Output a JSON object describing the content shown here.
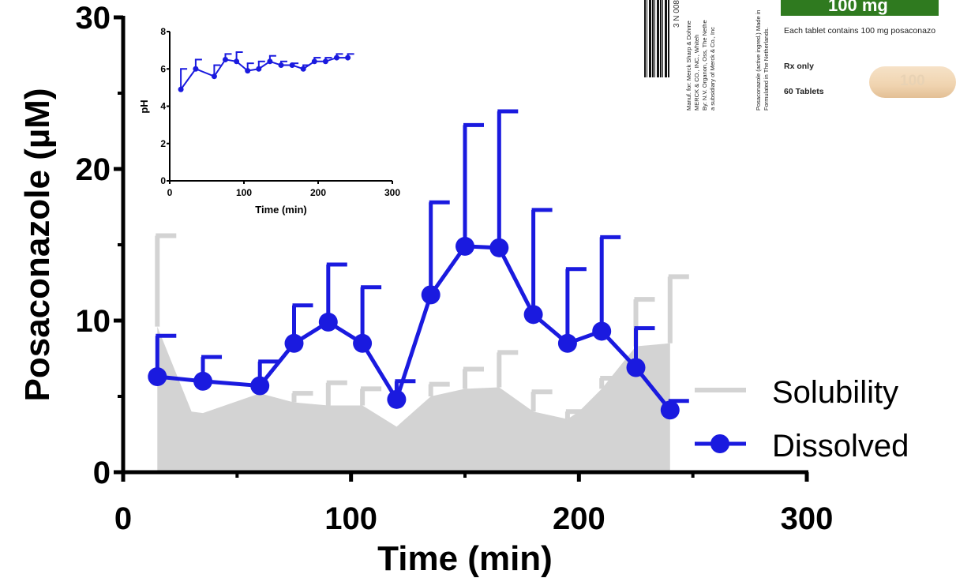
{
  "chart_data": [
    {
      "type": "line",
      "xlabel": "Time (min)",
      "ylabel": "Posaconazole (µM)",
      "xlim": [
        0,
        300
      ],
      "ylim": [
        0,
        30
      ],
      "xticks": [
        "0",
        "100",
        "200",
        "300"
      ],
      "yticks": [
        "0",
        "10",
        "20",
        "30"
      ],
      "legend_position": "bottom-right",
      "series": [
        {
          "name": "Solubility",
          "style": "area",
          "color": "#d3d3d3",
          "x": [
            15,
            30,
            35,
            60,
            75,
            90,
            105,
            120,
            135,
            150,
            165,
            180,
            195,
            200,
            210,
            225,
            240
          ],
          "values": [
            9.6,
            4.0,
            3.9,
            5.2,
            4.6,
            4.4,
            4.4,
            3.0,
            5.0,
            5.5,
            5.6,
            4.0,
            3.5,
            4.0,
            5.5,
            8.3,
            8.5
          ],
          "error_upper": [
            15.6,
            null,
            null,
            null,
            5.2,
            5.9,
            5.5,
            null,
            5.8,
            6.8,
            7.9,
            5.3,
            4.0,
            null,
            6.2,
            11.4,
            12.9
          ]
        },
        {
          "name": "Dissolved",
          "style": "line-marker",
          "color": "#1a1adf",
          "x": [
            15,
            35,
            60,
            75,
            90,
            105,
            120,
            135,
            150,
            165,
            180,
            195,
            210,
            225,
            240
          ],
          "values": [
            6.3,
            6.0,
            5.7,
            8.5,
            9.9,
            8.5,
            4.8,
            11.7,
            14.9,
            14.8,
            10.4,
            8.5,
            9.3,
            6.9,
            4.1
          ],
          "error_upper": [
            9.0,
            7.6,
            7.3,
            11.0,
            13.7,
            12.2,
            6.0,
            17.8,
            22.9,
            23.8,
            17.3,
            13.4,
            15.5,
            9.5,
            4.7
          ]
        }
      ]
    },
    {
      "type": "line",
      "xlabel": "Time (min)",
      "ylabel": "pH",
      "xlim": [
        0,
        300
      ],
      "ylim": [
        0,
        8
      ],
      "xticks": [
        "0",
        "100",
        "200",
        "300"
      ],
      "yticks": [
        "0",
        "2",
        "4",
        "6",
        "8"
      ],
      "series": [
        {
          "color": "#1a1adf",
          "x": [
            15,
            35,
            60,
            75,
            90,
            105,
            120,
            135,
            150,
            165,
            180,
            195,
            210,
            225,
            240
          ],
          "values": [
            4.9,
            6.0,
            5.6,
            6.5,
            6.4,
            5.9,
            6.0,
            6.4,
            6.2,
            6.2,
            6.0,
            6.4,
            6.4,
            6.6,
            6.6
          ],
          "error_upper": [
            6.0,
            6.5,
            6.2,
            6.8,
            6.9,
            6.3,
            6.4,
            6.7,
            6.4,
            6.3,
            6.2,
            6.6,
            6.6,
            6.8,
            6.8
          ]
        }
      ]
    }
  ],
  "package": {
    "barcode_number": "3 N   008",
    "manufacturer_lines": [
      "Manuf. for: Merck Sharp & Dohme",
      "MERCK & CO., INC., Whiteh",
      "By: N.V. Organon, Oss, The Nethe",
      "a subsidiary of Merck & Co., Inc"
    ],
    "ingredient_lines": [
      "Posaconazole (active ingred.) Made in",
      "Formulated in The Netherlands."
    ],
    "strength": "100 mg",
    "each_tablet": "Each tablet contains 100 mg posaconazo",
    "rx_only": "Rx only",
    "count": "60 Tablets",
    "pill_imprint": "100"
  }
}
